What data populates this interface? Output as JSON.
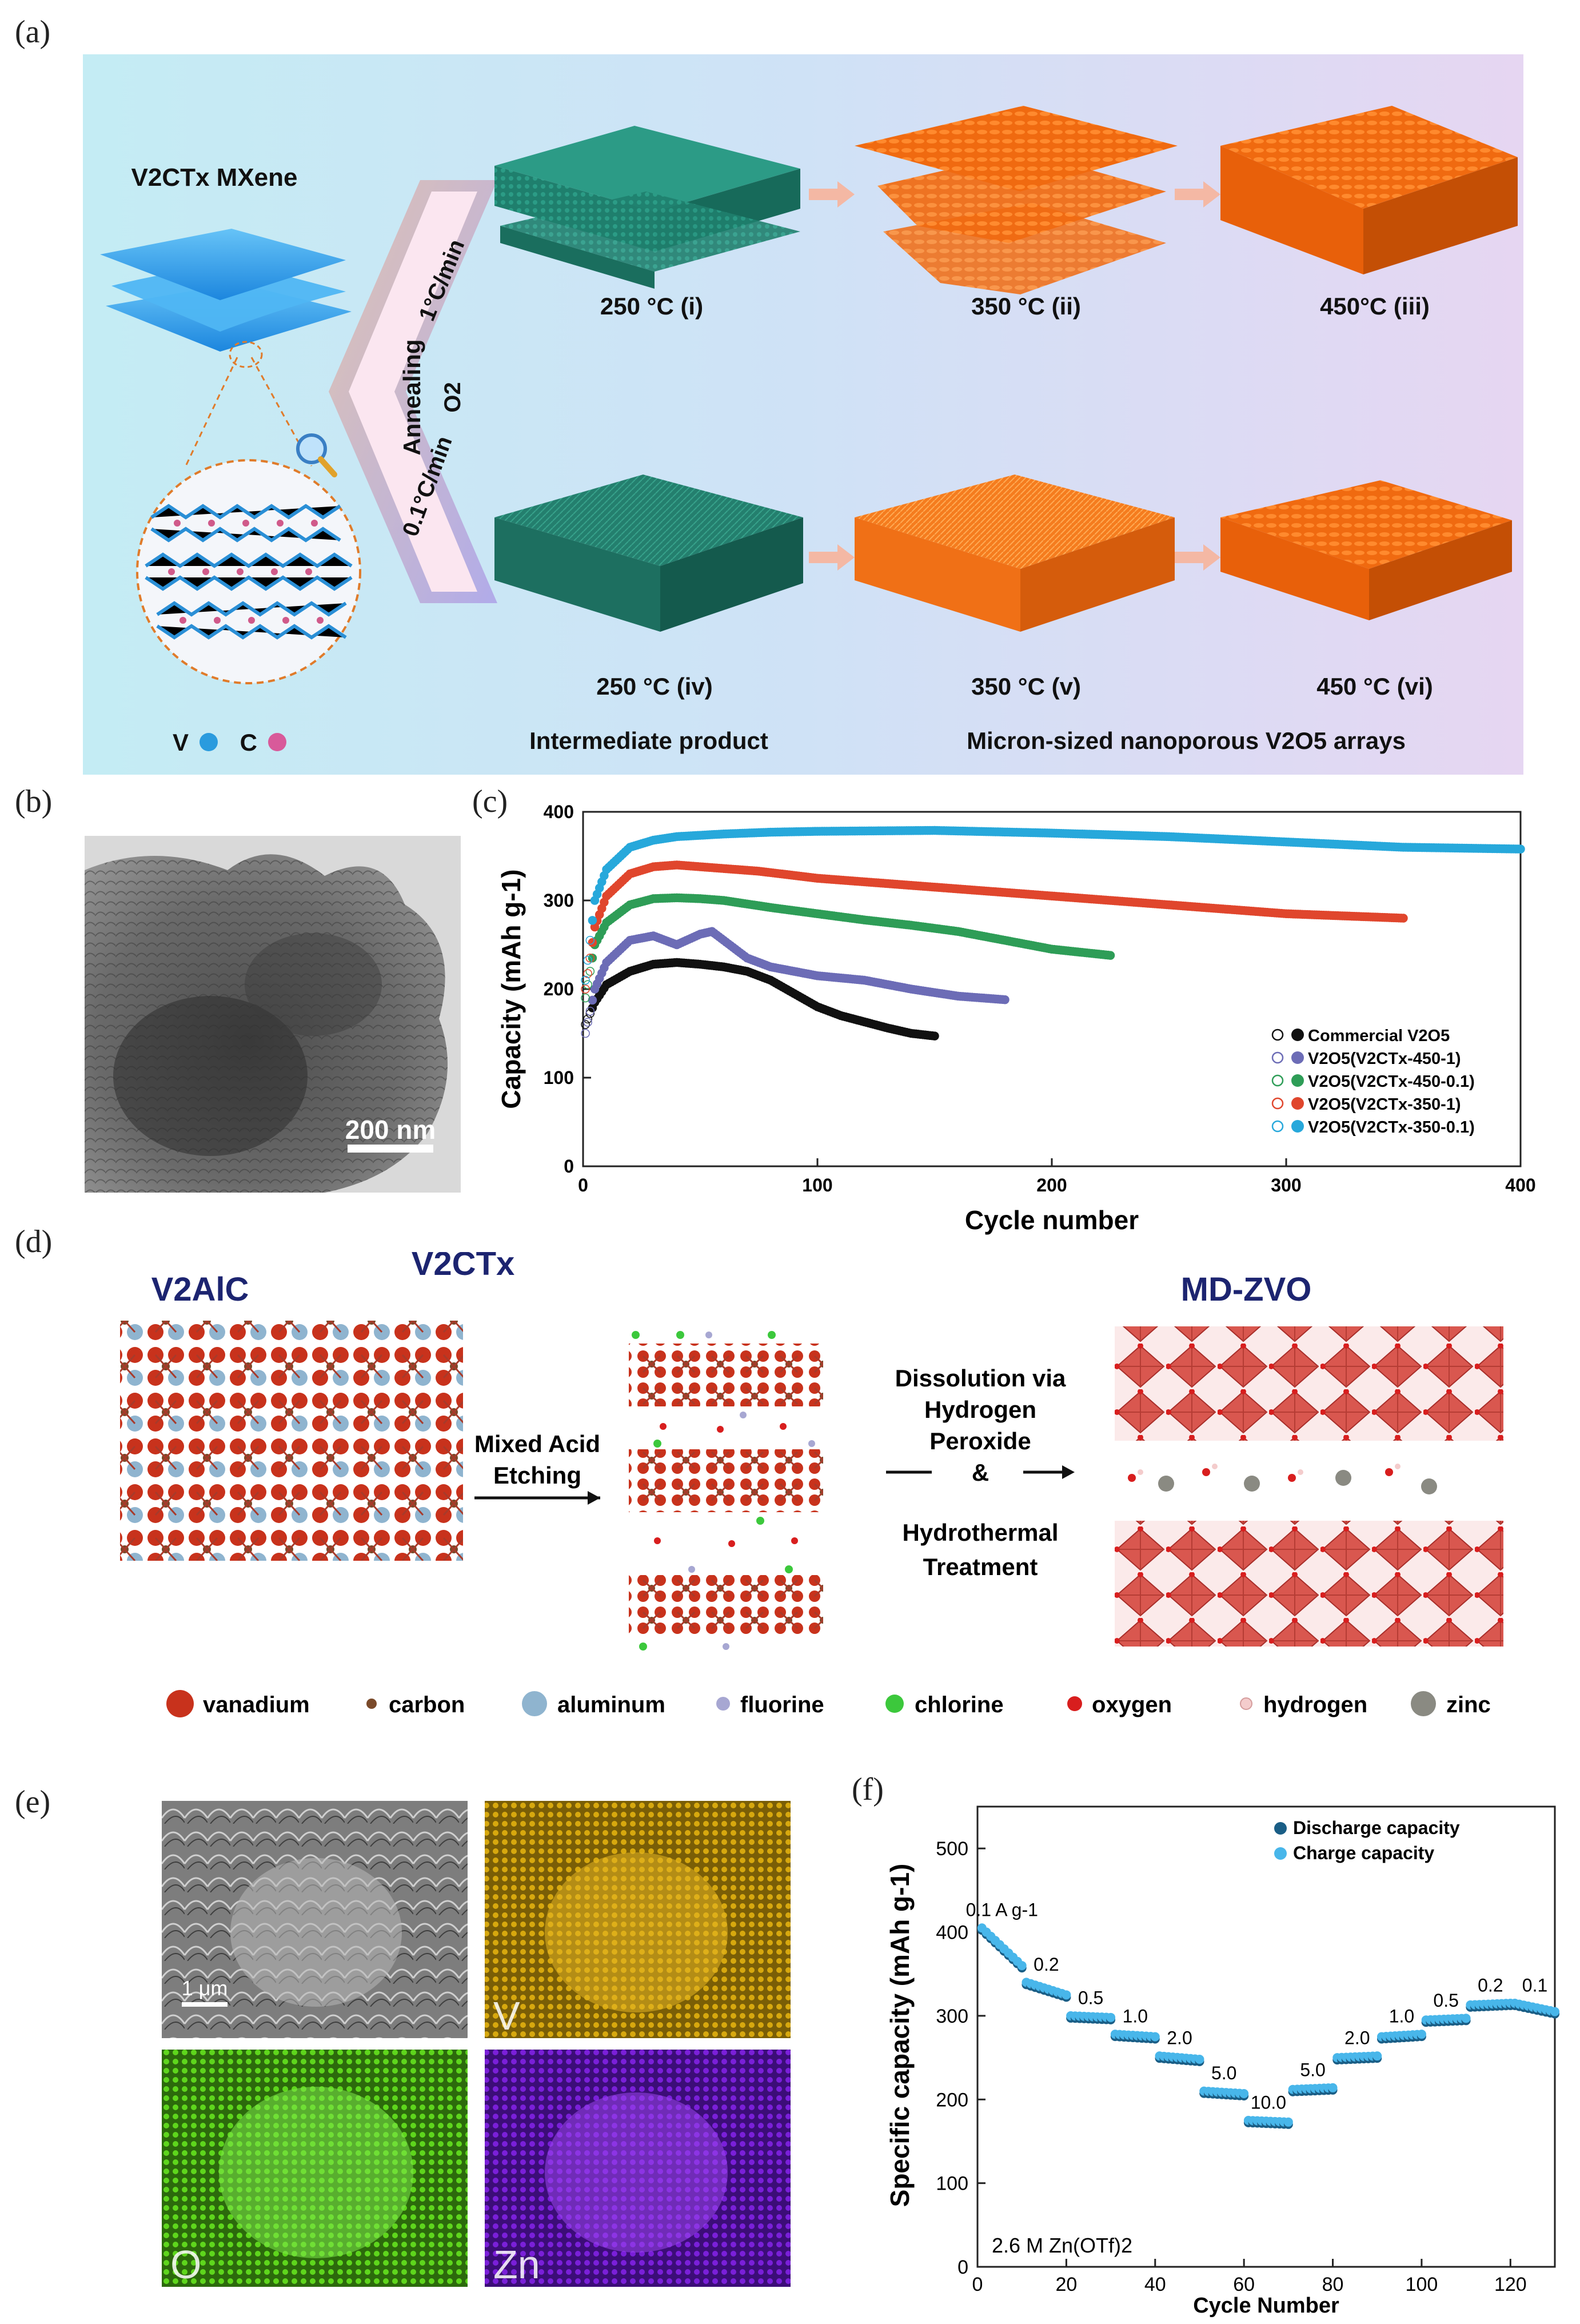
{
  "panel_labels": {
    "a": "(a)",
    "b": "(b)",
    "c": "(c)",
    "d": "(d)",
    "e": "(e)",
    "f": "(f)"
  },
  "panel_a": {
    "mxene_title": "V2CTx MXene",
    "annealing": "Annealing",
    "rate_fast": "1°C/min",
    "rate_slow": "0.1°C/min",
    "oxygen": "O2",
    "row1": [
      "250 °C (i)",
      "350 °C (ii)",
      "450°C (iii)"
    ],
    "row2": [
      "250 °C (iv)",
      "350 °C (v)",
      "450 °C (vi)"
    ],
    "legend_v": "V",
    "legend_c": "C",
    "caption_intermediate": "Intermediate product",
    "caption_arrays": "Micron-sized nanoporous V2O5 arrays",
    "colors": {
      "mxene": "#3aa2ee",
      "intermediate": "#1e7d6b",
      "oxide": "#f26a12",
      "bg_left": "#c6ecf4",
      "bg_right": "#e4d6f1"
    }
  },
  "panel_b": {
    "scale_bar": "200 nm"
  },
  "panel_c": {
    "chart_data": {
      "type": "scatter",
      "xlabel": "Cycle number",
      "ylabel": "Capacity (mAh g-1)",
      "xlim": [
        0,
        400
      ],
      "ylim": [
        0,
        400
      ],
      "xticks": [
        0,
        100,
        200,
        300,
        400
      ],
      "yticks": [
        0,
        100,
        200,
        300,
        400
      ],
      "legend_position": "bottom-right",
      "series": [
        {
          "name": "Commercial V2O5",
          "color": "#111111",
          "x": [
            1,
            5,
            10,
            20,
            30,
            40,
            50,
            60,
            70,
            80,
            90,
            100,
            110,
            120,
            130,
            140,
            150
          ],
          "y": [
            160,
            185,
            205,
            220,
            228,
            230,
            228,
            225,
            220,
            210,
            195,
            180,
            170,
            163,
            156,
            150,
            147
          ]
        },
        {
          "name": "V2O5(V2CTx-450-1)",
          "color": "#6c6cb6",
          "x": [
            1,
            5,
            10,
            20,
            30,
            40,
            50,
            55,
            60,
            70,
            80,
            90,
            100,
            120,
            140,
            160,
            180
          ],
          "y": [
            150,
            200,
            230,
            255,
            260,
            250,
            262,
            265,
            255,
            235,
            225,
            220,
            215,
            210,
            200,
            192,
            188
          ]
        },
        {
          "name": "V2O5(V2CTx-450-0.1)",
          "color": "#2e9d57",
          "x": [
            1,
            5,
            10,
            20,
            30,
            40,
            50,
            60,
            80,
            100,
            120,
            140,
            160,
            180,
            200,
            225
          ],
          "y": [
            190,
            250,
            275,
            295,
            302,
            303,
            302,
            300,
            292,
            285,
            278,
            272,
            265,
            255,
            245,
            238
          ]
        },
        {
          "name": "V2O5(V2CTx-350-1)",
          "color": "#e0462d",
          "x": [
            1,
            5,
            10,
            20,
            30,
            40,
            50,
            75,
            100,
            150,
            200,
            250,
            300,
            350
          ],
          "y": [
            200,
            270,
            305,
            330,
            338,
            340,
            338,
            333,
            325,
            315,
            305,
            295,
            285,
            280
          ]
        },
        {
          "name": "V2O5(V2CTx-350-0.1)",
          "color": "#27a8db",
          "x": [
            1,
            5,
            10,
            20,
            30,
            40,
            60,
            80,
            100,
            150,
            200,
            250,
            300,
            350,
            400
          ],
          "y": [
            210,
            300,
            335,
            360,
            368,
            372,
            375,
            377,
            378,
            379,
            376,
            372,
            366,
            360,
            358
          ]
        }
      ]
    }
  },
  "panel_d": {
    "titles": {
      "v2alc": "V2AlC",
      "v2ctx": "V2CTx",
      "mdzvo": "MD-ZVO"
    },
    "step1": [
      "Mixed Acid",
      "Etching"
    ],
    "step2": [
      "Dissolution via",
      "Hydrogen",
      "Peroxide",
      "&",
      "Hydrothermal",
      "Treatment"
    ],
    "legend": [
      {
        "label": "vanadium",
        "color": "#c8321c"
      },
      {
        "label": "carbon",
        "color": "#7a4a2a"
      },
      {
        "label": "aluminum",
        "color": "#8fb4cf"
      },
      {
        "label": "fluorine",
        "color": "#a7a7d2"
      },
      {
        "label": "chlorine",
        "color": "#3cc83c"
      },
      {
        "label": "oxygen",
        "color": "#d81e1e"
      },
      {
        "label": "hydrogen",
        "color": "#f4cccc"
      },
      {
        "label": "zinc",
        "color": "#8a8a82"
      }
    ]
  },
  "panel_e": {
    "scale_bar": "1 μm",
    "maps": [
      {
        "label": "V",
        "color": "#d7a80e"
      },
      {
        "label": "O",
        "color": "#5ed61c"
      },
      {
        "label": "Zn",
        "color": "#7a1fd9"
      }
    ]
  },
  "panel_f": {
    "chart_data": {
      "type": "scatter",
      "xlabel": "Cycle Number",
      "ylabel": "Specific capacity (mAh g-1)",
      "xlim": [
        0,
        130
      ],
      "ylim": [
        0,
        550
      ],
      "xticks": [
        0,
        20,
        40,
        60,
        80,
        100,
        120
      ],
      "yticks": [
        0,
        100,
        200,
        300,
        400,
        500
      ],
      "legend_position": "top-right",
      "electrolyte_label": "2.6 M Zn(OTf)2",
      "segments": [
        {
          "rate": "0.1 A g-1",
          "start": 1,
          "end": 10,
          "capacity_start": 405,
          "capacity_end": 360
        },
        {
          "rate": "0.2",
          "start": 11,
          "end": 20,
          "capacity_start": 340,
          "capacity_end": 325
        },
        {
          "rate": "0.5",
          "start": 21,
          "end": 30,
          "capacity_start": 300,
          "capacity_end": 298
        },
        {
          "rate": "1.0",
          "start": 31,
          "end": 40,
          "capacity_start": 278,
          "capacity_end": 275
        },
        {
          "rate": "2.0",
          "start": 41,
          "end": 50,
          "capacity_start": 252,
          "capacity_end": 248
        },
        {
          "rate": "5.0",
          "start": 51,
          "end": 60,
          "capacity_start": 210,
          "capacity_end": 207
        },
        {
          "rate": "10.0",
          "start": 61,
          "end": 70,
          "capacity_start": 175,
          "capacity_end": 173
        },
        {
          "rate": "5.0",
          "start": 71,
          "end": 80,
          "capacity_start": 212,
          "capacity_end": 214
        },
        {
          "rate": "2.0",
          "start": 81,
          "end": 90,
          "capacity_start": 250,
          "capacity_end": 252
        },
        {
          "rate": "1.0",
          "start": 91,
          "end": 100,
          "capacity_start": 275,
          "capacity_end": 278
        },
        {
          "rate": "0.5",
          "start": 101,
          "end": 110,
          "capacity_start": 295,
          "capacity_end": 297
        },
        {
          "rate": "0.2",
          "start": 111,
          "end": 120,
          "capacity_start": 313,
          "capacity_end": 315
        },
        {
          "rate": "0.1",
          "start": 121,
          "end": 130,
          "capacity_start": 315,
          "capacity_end": 305
        }
      ],
      "series": [
        {
          "name": "Discharge capacity",
          "color": "#1a5e86"
        },
        {
          "name": "Charge capacity",
          "color": "#48b6ea"
        }
      ]
    }
  }
}
